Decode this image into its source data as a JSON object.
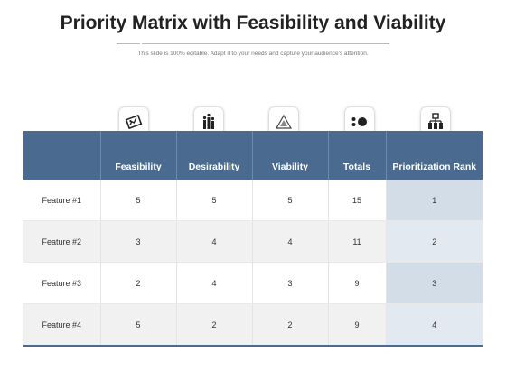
{
  "slide": {
    "title": "Priority Matrix with Feasibility and Viability",
    "subtitle": "This slide is 100% editable. Adapt it to your needs and capture your audience's attention."
  },
  "header_icons": [
    "diamond-chart-icon",
    "raised-hands-icon",
    "triangle-target-icon",
    "dots-icon",
    "org-chart-icon"
  ],
  "table": {
    "columns": [
      "",
      "Feasibility",
      "Desirability",
      "Viability",
      "Totals",
      "Prioritization Rank"
    ],
    "rows": [
      {
        "feature": "Feature #1",
        "feasibility": "5",
        "desirability": "5",
        "viability": "5",
        "totals": "15",
        "rank": "1"
      },
      {
        "feature": "Feature #2",
        "feasibility": "3",
        "desirability": "4",
        "viability": "4",
        "totals": "11",
        "rank": "2"
      },
      {
        "feature": "Feature #3",
        "feasibility": "2",
        "desirability": "4",
        "viability": "3",
        "totals": "9",
        "rank": "3"
      },
      {
        "feature": "Feature #4",
        "feasibility": "5",
        "desirability": "2",
        "viability": "2",
        "totals": "9",
        "rank": "4"
      }
    ]
  },
  "colors": {
    "header_bg": "#4a6a8f",
    "rank_col_dark": "#d3dde8",
    "rank_col_light": "#e3e9f1",
    "row_alt": "#f1f1f1"
  }
}
